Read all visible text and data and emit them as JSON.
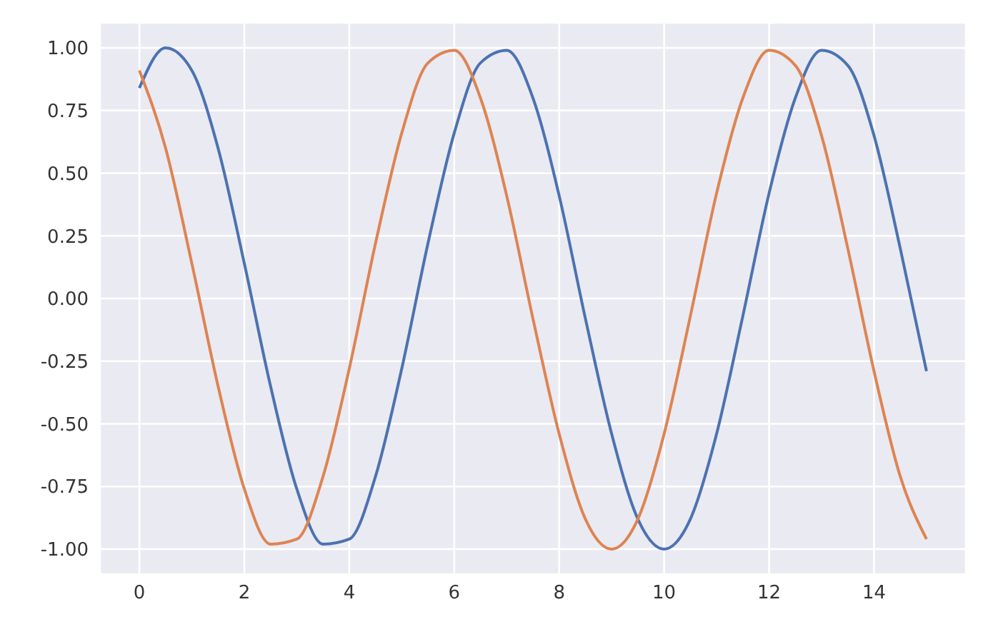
{
  "chart_data": {
    "type": "line",
    "x": [
      0,
      0.5,
      1,
      1.5,
      2,
      2.5,
      3,
      3.5,
      4,
      4.5,
      5,
      5.5,
      6,
      6.5,
      7,
      7.5,
      8,
      8.5,
      9,
      9.5,
      10,
      10.5,
      11,
      11.5,
      12,
      12.5,
      13,
      13.5,
      14,
      14.5,
      15
    ],
    "series": [
      {
        "color": "#4c72b0",
        "values": [
          0.84,
          1.0,
          0.91,
          0.6,
          0.14,
          -0.35,
          -0.76,
          -0.98,
          -0.96,
          -0.71,
          -0.28,
          0.22,
          0.66,
          0.94,
          0.99,
          0.8,
          0.41,
          -0.08,
          -0.54,
          -0.88,
          -1.0,
          -0.88,
          -0.54,
          -0.07,
          0.42,
          0.8,
          0.99,
          0.93,
          0.65,
          0.2,
          -0.29
        ]
      },
      {
        "color": "#dd8452",
        "values": [
          0.91,
          0.6,
          0.14,
          -0.35,
          -0.76,
          -0.98,
          -0.96,
          -0.71,
          -0.28,
          0.22,
          0.66,
          0.94,
          0.99,
          0.8,
          0.41,
          -0.08,
          -0.54,
          -0.88,
          -1.0,
          -0.88,
          -0.54,
          -0.07,
          0.42,
          0.8,
          0.99,
          0.93,
          0.65,
          0.2,
          -0.29,
          -0.71,
          -0.96
        ]
      }
    ],
    "xlim": [
      -0.75,
      15.75
    ],
    "xticks": [
      0,
      2,
      4,
      6,
      8,
      10,
      12,
      14
    ],
    "ylim": [
      -1.1,
      1.1
    ],
    "yticks": [
      {
        "value": -1,
        "label": "-1.00"
      },
      {
        "value": -0.75,
        "label": "-0.75"
      },
      {
        "value": -0.5,
        "label": "-0.50"
      },
      {
        "value": -0.25,
        "label": "-0.25"
      },
      {
        "value": 0,
        "label": "0.00"
      },
      {
        "value": 0.25,
        "label": "0.25"
      },
      {
        "value": 0.5,
        "label": "0.50"
      },
      {
        "value": 0.75,
        "label": "0.75"
      },
      {
        "value": 1,
        "label": "1.00"
      }
    ],
    "grid": true,
    "legend": false,
    "marker": "none",
    "line_style": "solid"
  }
}
